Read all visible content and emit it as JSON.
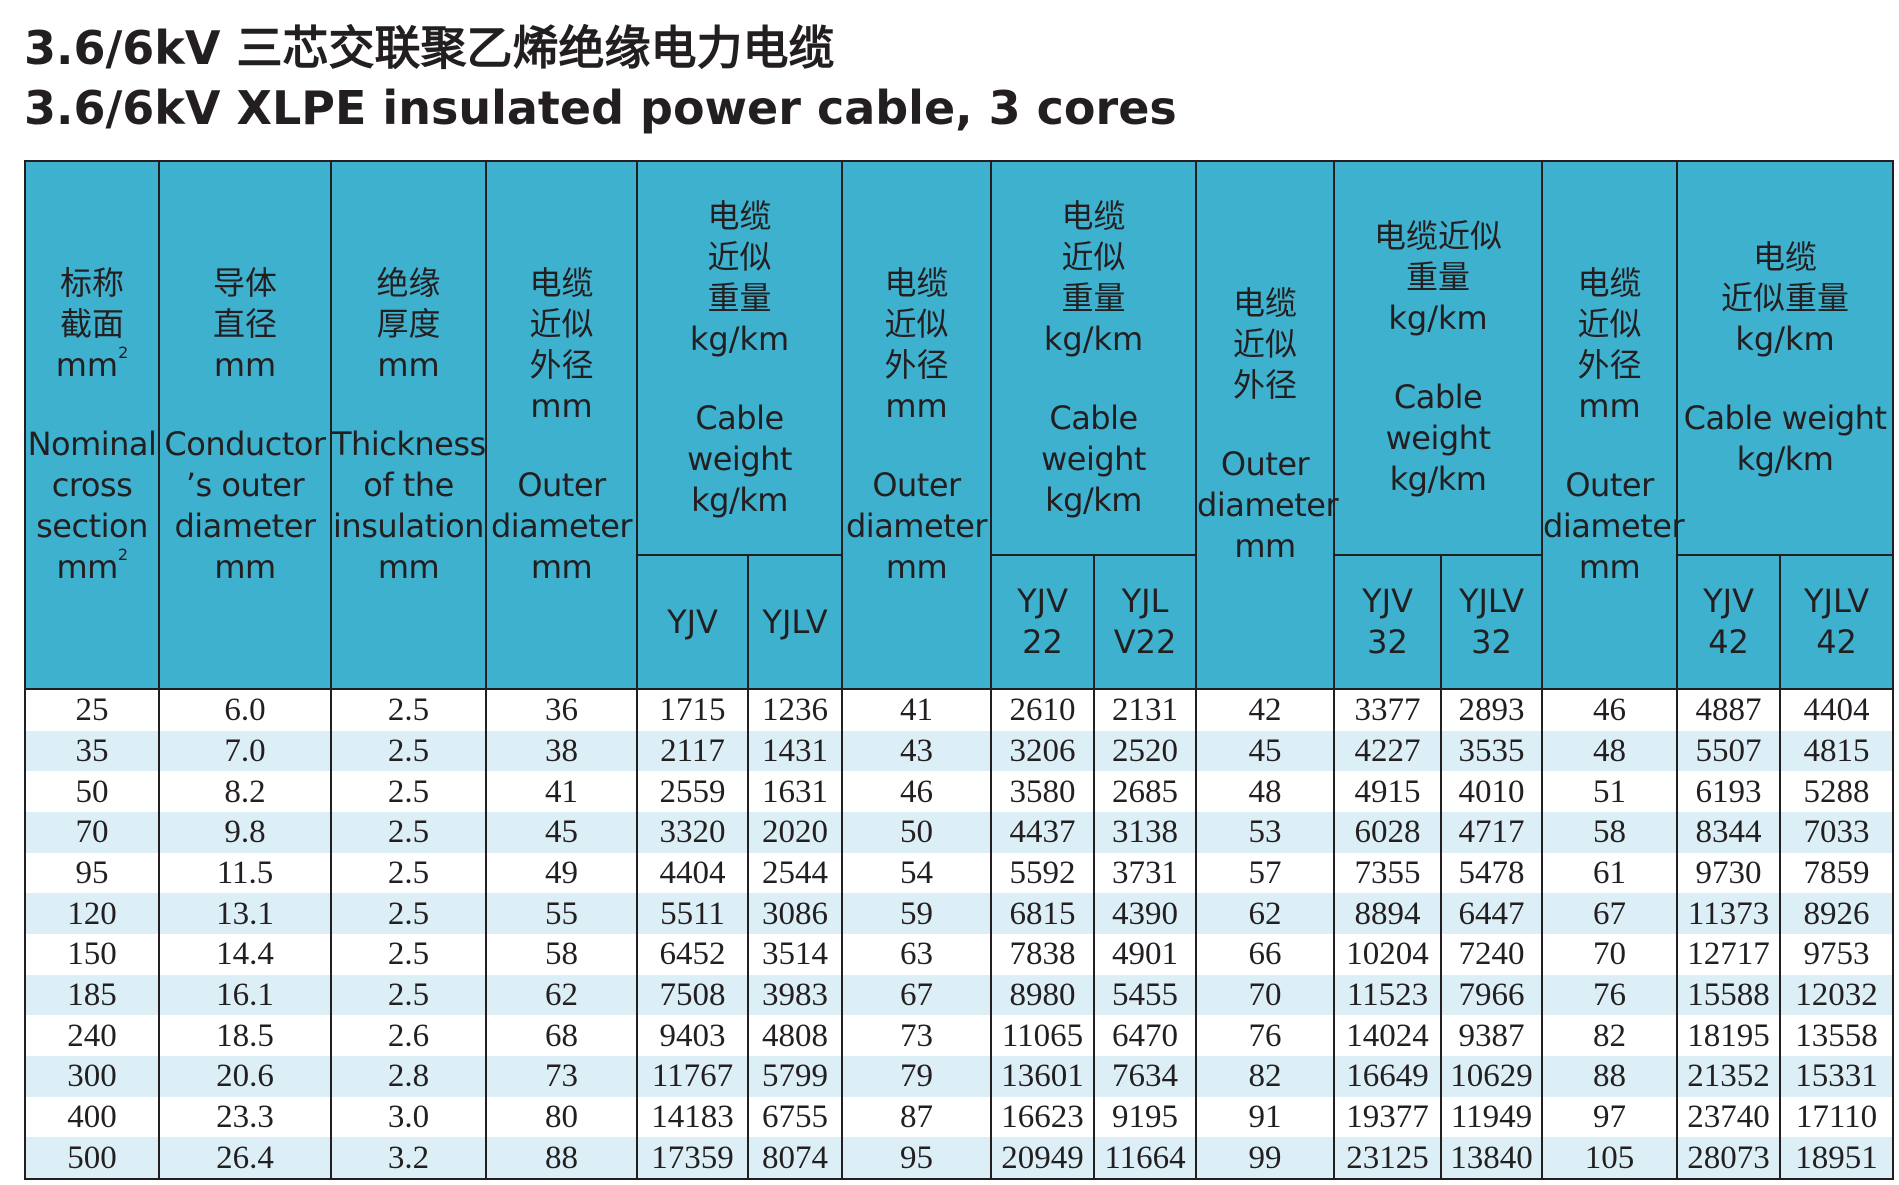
{
  "title": {
    "zh": "3.6/6kV 三芯交联聚乙烯绝缘电力电缆",
    "en": "3.6/6kV XLPE insulated power cable, 3 cores"
  },
  "colors": {
    "header_bg": "#3eb1cf",
    "stripe_bg": "#dceff6",
    "text": "#231f20"
  },
  "headers": {
    "nominal": {
      "zh": "标称\n截面\nmm",
      "sup": "2",
      "en": "Nominal\ncross\nsection\nmm",
      "en_sup": "2"
    },
    "conductor": {
      "zh": "导体\n直径\nmm",
      "en": "Conductor\n’s outer\ndiameter\nmm"
    },
    "insulation": {
      "zh": "绝缘\n厚度\nmm",
      "en": "Thickness\nof the\ninsulation\nmm"
    },
    "od1": {
      "zh": "电缆\n近似\n外径\nmm",
      "en": "Outer\ndiameter\nmm"
    },
    "w1": {
      "zh": "电缆\n近似\n重量\nkg/km",
      "en": "Cable\nweight\nkg/km"
    },
    "od2": {
      "zh": "电缆\n近似\n外径\nmm",
      "en": "Outer\ndiameter\nmm"
    },
    "w2": {
      "zh": "电缆\n近似\n重量\nkg/km",
      "en": "Cable\nweight\nkg/km"
    },
    "od3": {
      "zh": "电缆\n近似\n外径",
      "en": "Outer\ndiameter\nmm"
    },
    "w3": {
      "zh": "电缆近似\n重量\nkg/km",
      "en": "Cable\nweight\nkg/km"
    },
    "od4": {
      "zh": "电缆\n近似\n外径\nmm",
      "en": "Outer\ndiameter\nmm"
    },
    "w4": {
      "zh": "电缆\n近似重量\nkg/km",
      "en": "Cable weight\nkg/km"
    },
    "sub": [
      "YJV",
      "YJLV",
      "YJV\n22",
      "YJL\nV22",
      "YJV\n32",
      "YJLV\n32",
      "YJV\n42",
      "YJLV\n42"
    ]
  },
  "rows": [
    [
      "25",
      "6.0",
      "2.5",
      "36",
      "1715",
      "1236",
      "41",
      "2610",
      "2131",
      "42",
      "3377",
      "2893",
      "46",
      "4887",
      "4404"
    ],
    [
      "35",
      "7.0",
      "2.5",
      "38",
      "2117",
      "1431",
      "43",
      "3206",
      "2520",
      "45",
      "4227",
      "3535",
      "48",
      "5507",
      "4815"
    ],
    [
      "50",
      "8.2",
      "2.5",
      "41",
      "2559",
      "1631",
      "46",
      "3580",
      "2685",
      "48",
      "4915",
      "4010",
      "51",
      "6193",
      "5288"
    ],
    [
      "70",
      "9.8",
      "2.5",
      "45",
      "3320",
      "2020",
      "50",
      "4437",
      "3138",
      "53",
      "6028",
      "4717",
      "58",
      "8344",
      "7033"
    ],
    [
      "95",
      "11.5",
      "2.5",
      "49",
      "4404",
      "2544",
      "54",
      "5592",
      "3731",
      "57",
      "7355",
      "5478",
      "61",
      "9730",
      "7859"
    ],
    [
      "120",
      "13.1",
      "2.5",
      "55",
      "5511",
      "3086",
      "59",
      "6815",
      "4390",
      "62",
      "8894",
      "6447",
      "67",
      "11373",
      "8926"
    ],
    [
      "150",
      "14.4",
      "2.5",
      "58",
      "6452",
      "3514",
      "63",
      "7838",
      "4901",
      "66",
      "10204",
      "7240",
      "70",
      "12717",
      "9753"
    ],
    [
      "185",
      "16.1",
      "2.5",
      "62",
      "7508",
      "3983",
      "67",
      "8980",
      "5455",
      "70",
      "11523",
      "7966",
      "76",
      "15588",
      "12032"
    ],
    [
      "240",
      "18.5",
      "2.6",
      "68",
      "9403",
      "4808",
      "73",
      "11065",
      "6470",
      "76",
      "14024",
      "9387",
      "82",
      "18195",
      "13558"
    ],
    [
      "300",
      "20.6",
      "2.8",
      "73",
      "11767",
      "5799",
      "79",
      "13601",
      "7634",
      "82",
      "16649",
      "10629",
      "88",
      "21352",
      "15331"
    ],
    [
      "400",
      "23.3",
      "3.0",
      "80",
      "14183",
      "6755",
      "87",
      "16623",
      "9195",
      "91",
      "19377",
      "11949",
      "97",
      "23740",
      "17110"
    ],
    [
      "500",
      "26.4",
      "3.2",
      "88",
      "17359",
      "8074",
      "95",
      "20949",
      "11664",
      "99",
      "23125",
      "13840",
      "105",
      "28073",
      "18951"
    ]
  ]
}
